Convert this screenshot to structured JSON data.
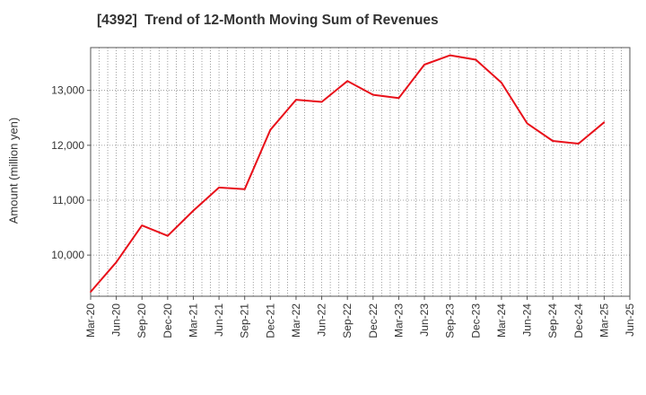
{
  "chart_data": {
    "type": "line",
    "title": "[4392]  Trend of 12-Month Moving Sum of Revenues",
    "xlabel": "",
    "ylabel": "Amount (million yen)",
    "categories": [
      "Mar-20",
      "Jun-20",
      "Sep-20",
      "Dec-20",
      "Mar-21",
      "Jun-21",
      "Sep-21",
      "Dec-21",
      "Mar-22",
      "Jun-22",
      "Sep-22",
      "Dec-22",
      "Mar-23",
      "Jun-23",
      "Sep-23",
      "Dec-23",
      "Mar-24",
      "Jun-24",
      "Sep-24",
      "Dec-24",
      "Mar-25",
      "Jun-25"
    ],
    "yticks": [
      10000,
      11000,
      12000,
      13000
    ],
    "ytick_labels": [
      "10,000",
      "11,000",
      "12,000",
      "13,000"
    ],
    "ylim": [
      9250,
      13780
    ],
    "series": [
      {
        "color": "#e8101a",
        "values": [
          9330,
          9870,
          10540,
          10350,
          10810,
          11230,
          11200,
          12280,
          12830,
          12790,
          13170,
          12920,
          12860,
          13470,
          13640,
          13560,
          13140,
          12400,
          12080,
          12030,
          12420,
          null
        ]
      }
    ],
    "grid": "vertical-dotted-minor-and-horizontal-dotted",
    "legend": "none"
  }
}
